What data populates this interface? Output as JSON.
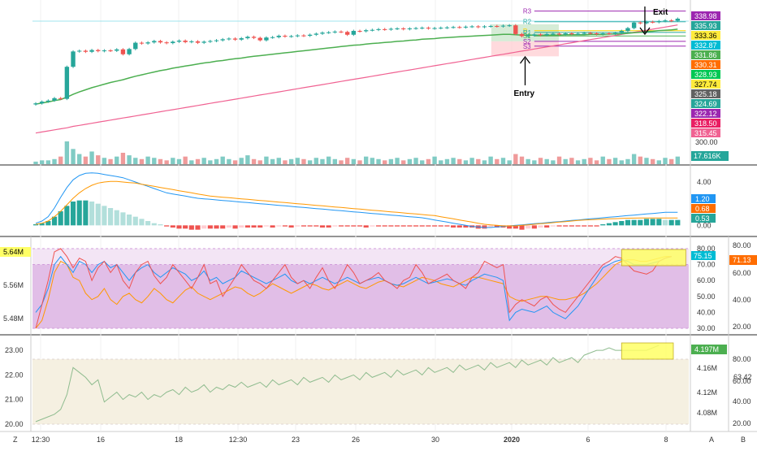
{
  "colors": {
    "up": "#26a69a",
    "down": "#ef5350",
    "ma50": "#4caf50",
    "ma200": "#f06292",
    "macd_line": "#2196f3",
    "signal_line": "#ff9800",
    "rsi_bg": "#e1bee7",
    "rsi_line_red": "#ef5350",
    "rsi_line_orange": "#ff9800",
    "rsi_line_blue": "#2196f3",
    "lower_bg": "#f5f0e1",
    "lower_line": "#8fbc8f",
    "highlight": "#ffff66",
    "grid": "#f0f0f0",
    "text": "#333333"
  },
  "annotations": {
    "exit_label": "Exit",
    "entry_label": "Entry"
  },
  "pivots": [
    {
      "label": "R3",
      "value": 338.98,
      "color": "#9c27b0"
    },
    {
      "label": "R2",
      "value": 335.93,
      "color": "#26a69a"
    },
    {
      "label": "P",
      "value": 333.36,
      "color": "#f5d300"
    },
    {
      "label": "R1",
      "value": 332.87,
      "color": "#26a69a"
    },
    {
      "label": "S1",
      "value": 331.86,
      "color": "#4caf50"
    },
    {
      "label": "S2",
      "value": 330.31,
      "color": "#9c27b0"
    },
    {
      "label": "S3",
      "value": 328.93,
      "color": "#9c27b0"
    }
  ],
  "price_badges": [
    {
      "value": "338.98",
      "bg": "#9c27b0"
    },
    {
      "value": "335.93",
      "bg": "#26a69a"
    },
    {
      "value": "333.36",
      "bg": "#ffeb3b",
      "fg": "#000000"
    },
    {
      "value": "332.87",
      "bg": "#00bcd4"
    },
    {
      "value": "331.86",
      "bg": "#4caf50"
    },
    {
      "value": "330.31",
      "bg": "#ff6d00"
    },
    {
      "value": "328.93",
      "bg": "#00c853"
    },
    {
      "value": "327.74",
      "bg": "#ffeb3b",
      "fg": "#000000"
    },
    {
      "value": "325.18",
      "bg": "#616161"
    },
    {
      "value": "324.69",
      "bg": "#26a69a"
    },
    {
      "value": "322.12",
      "bg": "#9c27b0"
    },
    {
      "value": "318.50",
      "bg": "#e91e63"
    },
    {
      "value": "315.45",
      "bg": "#f06292"
    }
  ],
  "price_tick": "300.00",
  "volume_badge": "17.616K",
  "macd_ticks": [
    "4.00",
    "0.00"
  ],
  "macd_badges": [
    {
      "value": "1.20",
      "bg": "#2196f3"
    },
    {
      "value": "0.68",
      "bg": "#ff6d00"
    },
    {
      "value": "0.53",
      "bg": "#26a69a"
    }
  ],
  "rsi_left_ticks": [
    "5.56M",
    "5.48M"
  ],
  "rsi_left_badge": "5.64M",
  "rsi_mid_ticks": [
    "80.00",
    "70.00",
    "60.00",
    "50.00",
    "40.00",
    "30.00"
  ],
  "rsi_mid_badge": "75.15",
  "rsi_right_ticks": [
    "80.00",
    "60.00",
    "40.00",
    "20.00"
  ],
  "rsi_right_badge": "71.13",
  "lower_left_ticks": [
    "23.00",
    "22.00",
    "21.00",
    "20.00"
  ],
  "lower_mid_ticks": [
    "4.16M",
    "4.12M",
    "4.08M"
  ],
  "lower_mid_badge": "4.197M",
  "lower_right_ticks": [
    "80.00",
    "60.00",
    "40.00",
    "20.00"
  ],
  "lower_right_badge": "63.42",
  "x_labels": [
    "12:30",
    "16",
    "18",
    "12:30",
    "23",
    "26",
    "30",
    "2020",
    "6",
    "8"
  ],
  "corner_labels": {
    "left": "Z",
    "mid": "A",
    "right": "B"
  },
  "chart_data": [
    {
      "type": "candlestick",
      "title": "",
      "ylim": [
        296,
        341
      ],
      "close": [
        312.5,
        313.0,
        313.3,
        314.0,
        313.8,
        323.0,
        327.4,
        327.6,
        327.3,
        327.8,
        327.5,
        327.7,
        327.6,
        328.0,
        326.6,
        328.1,
        329.9,
        329.7,
        330.0,
        330.4,
        330.0,
        329.8,
        330.2,
        330.5,
        330.1,
        330.3,
        329.9,
        330.2,
        330.4,
        330.6,
        330.9,
        331.1,
        330.8,
        331.2,
        331.6,
        331.3,
        330.6,
        331.4,
        331.5,
        331.9,
        331.7,
        331.8,
        332.0,
        331.9,
        332.2,
        332.5,
        332.8,
        332.9,
        333.1,
        333.0,
        332.2,
        333.3,
        333.2,
        333.5,
        333.6,
        333.8,
        333.7,
        333.9,
        334.0,
        333.8,
        334.0,
        334.1,
        334.2,
        334.0,
        334.1,
        334.2,
        334.3,
        334.4,
        334.3,
        334.5,
        334.6,
        334.4,
        334.6,
        334.7,
        334.6,
        334.8,
        334.9,
        332.4,
        331.8,
        332.0,
        332.3,
        332.1,
        332.4,
        332.5,
        332.3,
        332.6,
        332.4,
        332.5,
        332.7,
        332.6,
        332.4,
        332.6,
        332.5,
        332.7,
        333.3,
        334.1,
        335.7,
        335.5,
        335.9,
        335.8,
        336.1,
        336.3,
        336.2,
        336.8
      ],
      "ma50": [
        312.3,
        312.6,
        312.9,
        313.3,
        313.6,
        314.3,
        315.1,
        315.8,
        316.4,
        317.0,
        317.5,
        318.0,
        318.5,
        318.9,
        319.3,
        319.8,
        320.3,
        320.7,
        321.1,
        321.5,
        321.9,
        322.2,
        322.6,
        322.9,
        323.2,
        323.5,
        323.8,
        324.1,
        324.3,
        324.6,
        324.8,
        325.1,
        325.3,
        325.5,
        325.8,
        326.0,
        326.2,
        326.4,
        326.6,
        326.8,
        327.0,
        327.2,
        327.4,
        327.6,
        327.8,
        328.0,
        328.2,
        328.4,
        328.6,
        328.8,
        329.0,
        329.2,
        329.3,
        329.5,
        329.7,
        329.8,
        330.0,
        330.1,
        330.3,
        330.4,
        330.6,
        330.7,
        330.9,
        331.0,
        331.1,
        331.3,
        331.4,
        331.5,
        331.6,
        331.7,
        331.8,
        331.9,
        332.0,
        332.1,
        332.2,
        332.3,
        332.3,
        332.2,
        332.1,
        332.1,
        332.1,
        332.1,
        332.1,
        332.1,
        332.1,
        332.2,
        332.2,
        332.2,
        332.2,
        332.3,
        332.3,
        332.3,
        332.4,
        332.4,
        332.5,
        332.6,
        332.8,
        332.9,
        333.1,
        333.2,
        333.4,
        333.5,
        333.6,
        333.8
      ],
      "ma200": [
        304.0,
        304.3,
        304.6,
        304.9,
        305.2,
        305.5,
        305.9,
        306.2,
        306.5,
        306.8,
        307.1,
        307.4,
        307.7,
        308.0,
        308.3,
        308.6,
        308.9,
        309.2,
        309.5,
        309.8,
        310.1,
        310.4,
        310.7,
        311.0,
        311.3,
        311.6,
        311.9,
        312.2,
        312.5,
        312.8,
        313.1,
        313.4,
        313.7,
        314.0,
        314.3,
        314.6,
        314.9,
        315.2,
        315.5,
        315.8,
        316.1,
        316.4,
        316.7,
        317.0,
        317.3,
        317.6,
        317.9,
        318.2,
        318.5,
        318.8,
        319.1,
        319.4,
        319.7,
        320.0,
        320.3,
        320.6,
        320.9,
        321.2,
        321.5,
        321.8,
        322.1,
        322.4,
        322.7,
        323.0,
        323.3,
        323.6,
        323.9,
        324.2,
        324.5,
        324.8,
        325.1,
        325.4,
        325.7,
        326.0,
        326.3,
        326.6,
        326.9,
        327.2,
        327.5,
        327.8,
        328.1,
        328.4,
        328.7,
        329.0,
        329.3,
        329.6,
        329.9,
        330.2,
        330.5,
        330.8,
        331.1,
        331.4,
        331.7,
        332.0,
        332.3,
        332.6,
        332.9,
        333.2,
        333.5,
        333.8,
        334.1,
        334.4,
        334.7,
        335.0
      ],
      "volume": [
        2,
        3,
        3,
        4,
        6,
        18,
        12,
        8,
        6,
        10,
        7,
        5,
        4,
        6,
        9,
        7,
        5,
        4,
        6,
        5,
        4,
        3,
        5,
        4,
        6,
        3,
        4,
        5,
        3,
        4,
        6,
        4,
        3,
        5,
        7,
        4,
        3,
        6,
        4,
        5,
        3,
        4,
        5,
        4,
        3,
        5,
        4,
        6,
        4,
        3,
        5,
        4,
        3,
        6,
        5,
        4,
        3,
        4,
        5,
        3,
        4,
        5,
        3,
        4,
        6,
        3,
        4,
        5,
        4,
        3,
        5,
        4,
        3,
        6,
        4,
        5,
        3,
        8,
        6,
        4,
        3,
        5,
        4,
        3,
        6,
        4,
        5,
        3,
        4,
        5,
        3,
        6,
        4,
        5,
        3,
        4,
        8,
        6,
        5,
        4,
        3,
        5,
        4,
        6
      ]
    },
    {
      "type": "histogram+line",
      "title": "",
      "ylim": [
        -0.8,
        5.2
      ],
      "histogram": [
        0.1,
        0.2,
        0.4,
        0.8,
        1.3,
        1.8,
        2.2,
        2.3,
        2.3,
        2.2,
        2.0,
        1.8,
        1.6,
        1.4,
        1.2,
        1.0,
        0.8,
        0.6,
        0.4,
        0.2,
        0.1,
        -0.1,
        -0.2,
        -0.3,
        -0.3,
        -0.4,
        -0.4,
        -0.3,
        -0.3,
        -0.3,
        -0.3,
        -0.2,
        -0.3,
        -0.2,
        -0.2,
        -0.2,
        -0.2,
        -0.1,
        -0.2,
        -0.1,
        -0.1,
        -0.2,
        -0.1,
        -0.1,
        -0.1,
        -0.1,
        -0.2,
        -0.2,
        -0.1,
        -0.1,
        -0.1,
        -0.1,
        -0.1,
        -0.2,
        -0.1,
        -0.1,
        -0.1,
        -0.1,
        -0.1,
        -0.1,
        -0.1,
        -0.1,
        -0.1,
        -0.1,
        -0.1,
        -0.1,
        -0.1,
        -0.2,
        -0.2,
        -0.2,
        -0.2,
        -0.3,
        -0.3,
        -0.2,
        -0.2,
        -0.2,
        -0.3,
        -0.3,
        -0.4,
        -0.3,
        -0.3,
        -0.2,
        -0.2,
        -0.1,
        -0.1,
        -0.1,
        -0.1,
        -0.1,
        -0.1,
        -0.1,
        -0.1,
        0.1,
        0.2,
        0.3,
        0.4,
        0.5,
        0.5,
        0.5,
        0.6,
        0.6,
        0.6,
        0.5,
        0.5,
        0.5
      ],
      "macd": [
        0.2,
        0.4,
        0.8,
        1.6,
        2.6,
        3.5,
        4.2,
        4.6,
        4.8,
        4.85,
        4.8,
        4.7,
        4.6,
        4.5,
        4.4,
        4.2,
        4.0,
        3.8,
        3.6,
        3.4,
        3.2,
        3.0,
        2.9,
        2.8,
        2.7,
        2.6,
        2.5,
        2.45,
        2.4,
        2.35,
        2.3,
        2.25,
        2.2,
        2.15,
        2.1,
        2.05,
        2.0,
        1.95,
        1.9,
        1.85,
        1.8,
        1.75,
        1.7,
        1.65,
        1.6,
        1.55,
        1.5,
        1.45,
        1.4,
        1.35,
        1.3,
        1.25,
        1.2,
        1.15,
        1.1,
        1.05,
        1.0,
        0.95,
        0.9,
        0.85,
        0.8,
        0.75,
        0.7,
        0.6,
        0.5,
        0.4,
        0.3,
        0.2,
        0.1,
        0.0,
        -0.1,
        -0.15,
        -0.2,
        -0.2,
        -0.15,
        -0.1,
        -0.05,
        0.0,
        0.05,
        0.1,
        0.15,
        0.2,
        0.25,
        0.3,
        0.35,
        0.4,
        0.45,
        0.5,
        0.55,
        0.6,
        0.65,
        0.7,
        0.75,
        0.8,
        0.85,
        0.9,
        0.95,
        1.0,
        1.05,
        1.1,
        1.15,
        1.2,
        1.2,
        1.2
      ],
      "signal": [
        0.1,
        0.2,
        0.4,
        0.8,
        1.3,
        1.9,
        2.5,
        3.0,
        3.4,
        3.7,
        3.9,
        4.0,
        4.05,
        4.05,
        4.0,
        3.95,
        3.9,
        3.8,
        3.7,
        3.6,
        3.5,
        3.4,
        3.3,
        3.2,
        3.1,
        3.0,
        2.9,
        2.8,
        2.7,
        2.65,
        2.6,
        2.55,
        2.5,
        2.45,
        2.4,
        2.35,
        2.3,
        2.25,
        2.2,
        2.15,
        2.1,
        2.05,
        2.0,
        1.95,
        1.9,
        1.85,
        1.8,
        1.75,
        1.7,
        1.65,
        1.6,
        1.55,
        1.5,
        1.45,
        1.4,
        1.35,
        1.3,
        1.25,
        1.2,
        1.15,
        1.1,
        1.05,
        1.0,
        0.95,
        0.9,
        0.8,
        0.7,
        0.6,
        0.5,
        0.4,
        0.3,
        0.2,
        0.1,
        0.05,
        0.0,
        -0.05,
        -0.05,
        -0.05,
        0.0,
        0.05,
        0.1,
        0.15,
        0.2,
        0.25,
        0.3,
        0.35,
        0.4,
        0.45,
        0.5,
        0.52,
        0.55,
        0.58,
        0.6,
        0.62,
        0.64,
        0.66,
        0.67,
        0.68,
        0.68,
        0.68,
        0.68,
        0.68,
        0.68,
        0.68
      ]
    },
    {
      "type": "line",
      "title": "",
      "ylim": [
        28,
        82
      ],
      "rsi_red": [
        30,
        45,
        60,
        78,
        80,
        75,
        68,
        74,
        72,
        60,
        68,
        72,
        65,
        70,
        60,
        55,
        65,
        70,
        72,
        63,
        58,
        62,
        70,
        65,
        60,
        55,
        62,
        70,
        58,
        60,
        50,
        56,
        62,
        70,
        65,
        60,
        58,
        55,
        60,
        65,
        70,
        62,
        58,
        60,
        55,
        62,
        68,
        60,
        55,
        62,
        70,
        65,
        58,
        60,
        62,
        65,
        60,
        58,
        55,
        60,
        62,
        70,
        65,
        58,
        60,
        62,
        64,
        60,
        58,
        55,
        62,
        65,
        72,
        70,
        68,
        70,
        40,
        45,
        48,
        46,
        44,
        48,
        50,
        45,
        42,
        40,
        45,
        50,
        55,
        60,
        65,
        70,
        72,
        75,
        74,
        70,
        66,
        65,
        64,
        66,
        72,
        74,
        75
      ],
      "rsi_blue": [
        40,
        45,
        55,
        70,
        75,
        70,
        65,
        72,
        70,
        65,
        70,
        72,
        68,
        70,
        65,
        60,
        65,
        68,
        70,
        65,
        62,
        65,
        68,
        66,
        64,
        60,
        62,
        66,
        60,
        62,
        58,
        60,
        62,
        66,
        64,
        62,
        60,
        58,
        60,
        62,
        64,
        60,
        58,
        60,
        58,
        60,
        62,
        60,
        58,
        60,
        62,
        60,
        58,
        60,
        61,
        62,
        60,
        58,
        57,
        58,
        60,
        62,
        60,
        58,
        59,
        60,
        61,
        60,
        58,
        57,
        60,
        62,
        64,
        63,
        62,
        60,
        35,
        40,
        42,
        41,
        40,
        42,
        44,
        40,
        38,
        36,
        40,
        44,
        50,
        56,
        62,
        68,
        70,
        72,
        73,
        72,
        70,
        70,
        70,
        71,
        72,
        74,
        75
      ],
      "rsi_orange": [
        30,
        35,
        48,
        65,
        72,
        70,
        62,
        60,
        52,
        48,
        50,
        55,
        48,
        45,
        50,
        52,
        48,
        46,
        50,
        55,
        52,
        48,
        46,
        50,
        54,
        56,
        52,
        50,
        48,
        50,
        52,
        54,
        56,
        55,
        52,
        50,
        52,
        55,
        58,
        56,
        54,
        52,
        54,
        56,
        58,
        57,
        55,
        54,
        56,
        58,
        60,
        58,
        56,
        55,
        57,
        59,
        60,
        58,
        57,
        56,
        58,
        60,
        62,
        61,
        60,
        58,
        57,
        56,
        58,
        60,
        62,
        62,
        61,
        60,
        59,
        58,
        50,
        48,
        47,
        48,
        49,
        50,
        50,
        49,
        48,
        48,
        49,
        50,
        52,
        55,
        58,
        62,
        66,
        70,
        72,
        73,
        73,
        72,
        72,
        73,
        74,
        75,
        75
      ]
    },
    {
      "type": "line",
      "title": "",
      "ylim": [
        19.8,
        23.2
      ],
      "values": [
        20.1,
        20.2,
        20.3,
        20.4,
        20.6,
        21.2,
        22.3,
        22.1,
        21.9,
        21.6,
        21.8,
        20.9,
        21.1,
        21.3,
        21.0,
        21.2,
        21.1,
        21.3,
        21.0,
        21.2,
        21.1,
        21.3,
        21.4,
        21.2,
        21.5,
        21.3,
        21.4,
        21.6,
        21.3,
        21.5,
        21.4,
        21.6,
        21.5,
        21.7,
        21.5,
        21.6,
        21.7,
        21.5,
        21.8,
        21.6,
        21.7,
        21.8,
        21.6,
        21.9,
        21.7,
        21.8,
        21.9,
        21.7,
        22.0,
        21.8,
        21.9,
        22.0,
        21.8,
        22.1,
        21.9,
        22.0,
        22.1,
        21.9,
        22.2,
        22.0,
        22.1,
        22.2,
        22.0,
        22.3,
        22.1,
        22.2,
        22.3,
        22.1,
        22.4,
        22.2,
        22.3,
        22.4,
        22.2,
        22.5,
        22.3,
        22.4,
        22.5,
        22.3,
        22.6,
        22.4,
        22.5,
        22.6,
        22.4,
        22.7,
        22.5,
        22.6,
        22.7,
        22.5,
        22.8,
        22.9,
        23.0,
        23.0,
        23.1,
        23.0,
        23.0,
        23.0,
        23.0,
        23.0,
        23.0,
        23.1,
        23.2
      ]
    }
  ]
}
